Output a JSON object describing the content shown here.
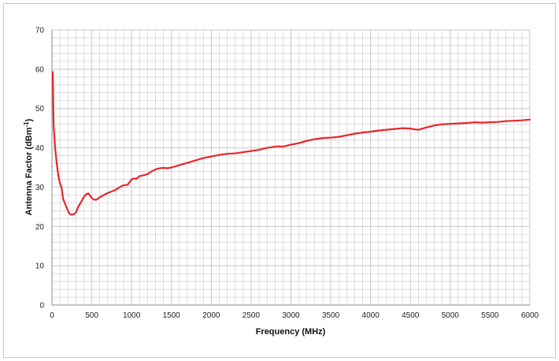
{
  "chart_data": {
    "type": "line",
    "title": "",
    "xlabel": "Frequency (MHz)",
    "ylabel_main": "Antenna Factor (dBm",
    "ylabel_sup": "-1",
    "ylabel_close": ")",
    "xlim": [
      0,
      6000
    ],
    "ylim": [
      0,
      70
    ],
    "x_ticks": [
      "0",
      "500",
      "1000",
      "1500",
      "2000",
      "2500",
      "3000",
      "3500",
      "4000",
      "4500",
      "5000",
      "5500",
      "6000"
    ],
    "y_ticks": [
      "0",
      "10",
      "20",
      "30",
      "40",
      "50",
      "60",
      "70"
    ],
    "grid": true,
    "line_color": "#e8262b",
    "grid_color": "#c8c8c8",
    "series": [
      {
        "x": [
          10,
          20,
          40,
          60,
          80,
          100,
          120,
          140,
          160,
          180,
          200,
          220,
          240,
          260,
          280,
          300,
          330,
          360,
          400,
          430,
          460,
          500,
          530,
          560,
          600,
          650,
          700,
          750,
          800,
          850,
          900,
          950,
          1000,
          1030,
          1060,
          1100,
          1150,
          1200,
          1250,
          1300,
          1350,
          1400,
          1450,
          1500,
          1600,
          1700,
          1800,
          1900,
          2000,
          2100,
          2200,
          2300,
          2400,
          2500,
          2600,
          2700,
          2800,
          2850,
          2900,
          3000,
          3100,
          3200,
          3300,
          3400,
          3500,
          3600,
          3700,
          3800,
          3900,
          4000,
          4100,
          4200,
          4300,
          4400,
          4500,
          4550,
          4600,
          4700,
          4800,
          4900,
          5000,
          5100,
          5200,
          5300,
          5400,
          5500,
          5600,
          5700,
          5800,
          5900,
          6000
        ],
        "values": [
          59.3,
          46,
          40,
          36,
          33,
          31,
          30,
          27,
          26,
          25,
          24,
          23.3,
          23,
          23,
          23.2,
          23.5,
          25,
          26,
          27.5,
          28.2,
          28.4,
          27.2,
          26.8,
          26.8,
          27.4,
          28,
          28.5,
          28.9,
          29.3,
          30,
          30.5,
          30.6,
          32,
          32.2,
          32.1,
          32.8,
          33,
          33.3,
          34,
          34.5,
          34.8,
          34.9,
          34.8,
          35,
          35.6,
          36.2,
          36.8,
          37.4,
          37.8,
          38.2,
          38.5,
          38.6,
          38.9,
          39.2,
          39.5,
          40,
          40.3,
          40.4,
          40.3,
          40.8,
          41.2,
          41.8,
          42.2,
          42.5,
          42.6,
          42.8,
          43.2,
          43.6,
          43.9,
          44.1,
          44.4,
          44.6,
          44.8,
          45,
          44.9,
          44.7,
          44.6,
          45.2,
          45.7,
          46,
          46.1,
          46.2,
          46.3,
          46.5,
          46.4,
          46.5,
          46.6,
          46.8,
          46.9,
          47.0,
          47.2
        ]
      }
    ]
  }
}
